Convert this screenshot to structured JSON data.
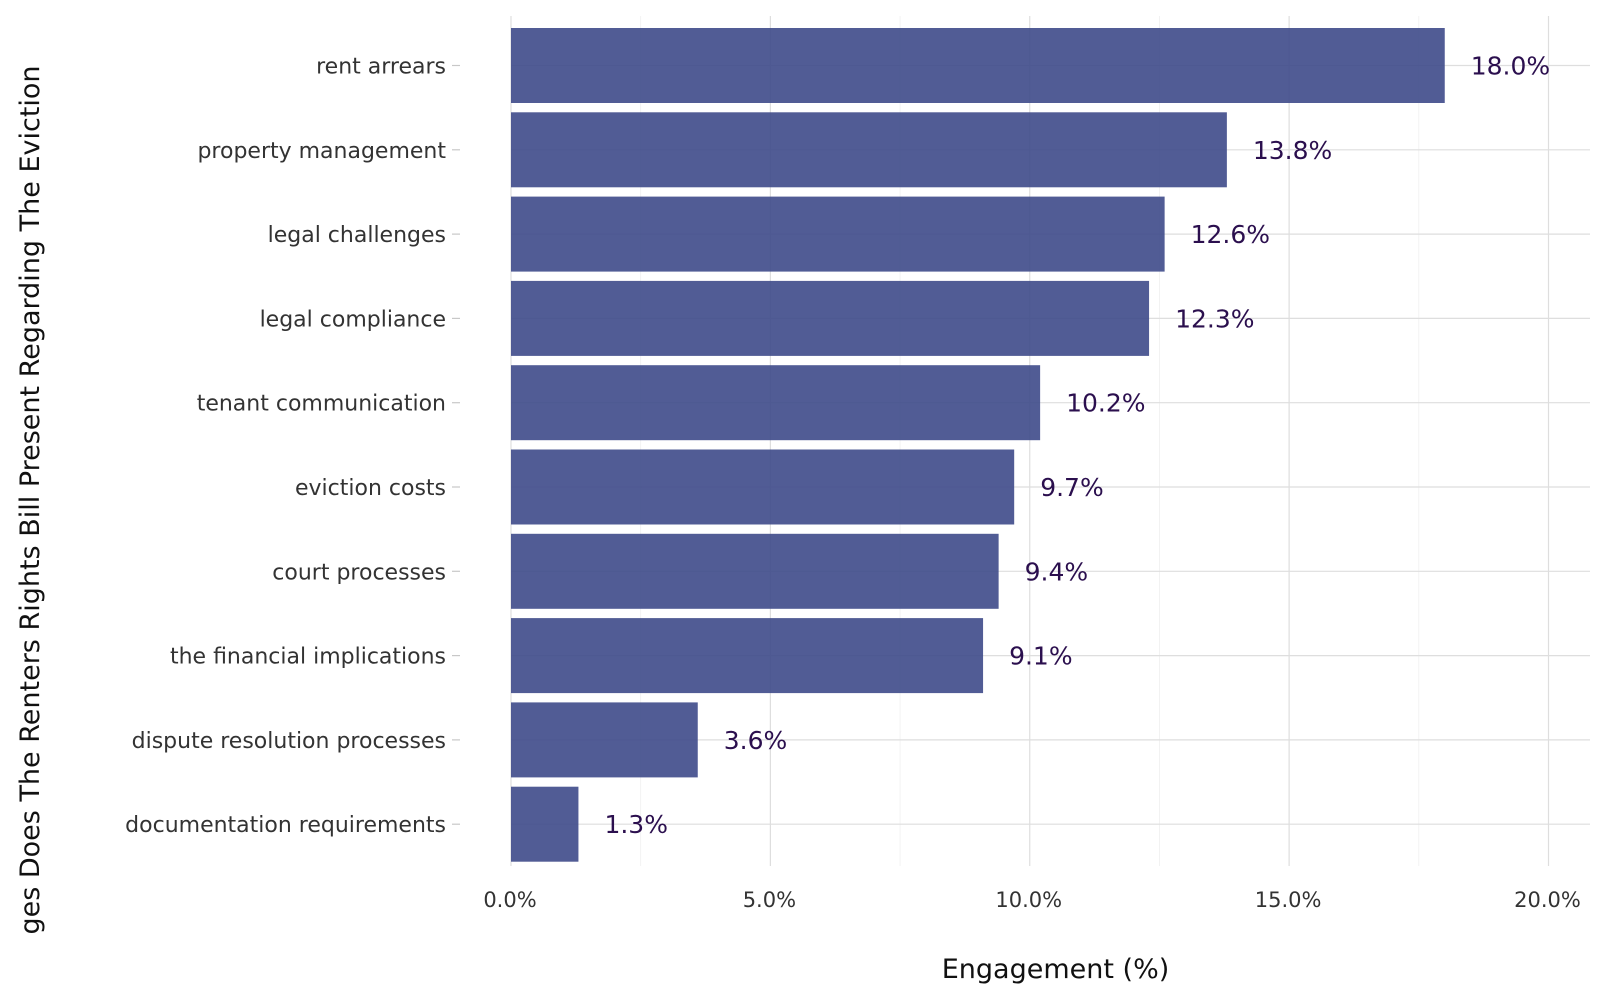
{
  "chart_data": {
    "type": "bar",
    "orientation": "horizontal",
    "title": "",
    "xlabel": "Engagement (%)",
    "ylabel": "ges Does The Renters Rights Bill Present Regarding The Eviction",
    "categories": [
      "rent arrears",
      "property management",
      "legal challenges",
      "legal compliance",
      "tenant communication",
      "eviction costs",
      "court processes",
      "the financial implications",
      "dispute resolution processes",
      "documentation requirements"
    ],
    "values": [
      18.0,
      13.8,
      12.6,
      12.3,
      10.2,
      9.7,
      9.4,
      9.1,
      3.6,
      1.3
    ],
    "value_labels": [
      "18.0%",
      "13.8%",
      "12.6%",
      "12.3%",
      "10.2%",
      "9.7%",
      "9.4%",
      "9.1%",
      "3.6%",
      "1.3%"
    ],
    "xlim": [
      0,
      20.8
    ],
    "x_ticks": [
      0,
      5,
      10,
      15,
      20
    ],
    "x_tick_labels": [
      "0.0%",
      "5.0%",
      "10.0%",
      "15.0%",
      "20.0%"
    ],
    "grid": true,
    "legend": "none",
    "bar_color": "#3e4a89",
    "value_label_color": "#2b0f4e"
  }
}
